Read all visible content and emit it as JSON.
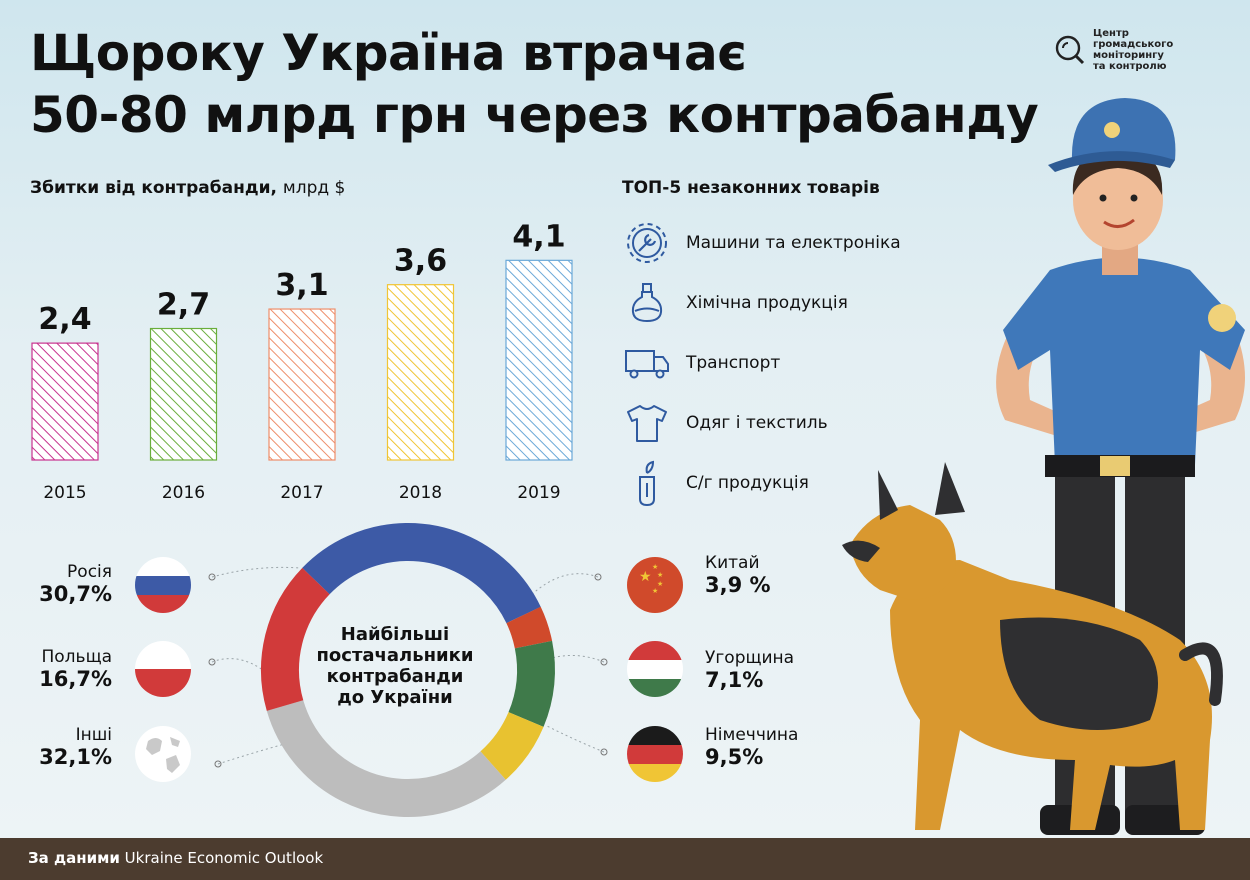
{
  "title": {
    "line1": "Щороку Україна втрачає",
    "line2": "50-80 млрд грн через контрабанду"
  },
  "logo": {
    "line1": "Центр",
    "line2": "громадського моніторингу",
    "line3": "та контролю"
  },
  "losses": {
    "title": "Збитки від контрабанди,",
    "unit": "млрд $"
  },
  "top_goods": {
    "title": "ТОП-5 незаконних товарів",
    "items": [
      {
        "label": "Машини та електроніка",
        "icon": "gear-wrench-icon"
      },
      {
        "label": "Хімічна продукція",
        "icon": "flask-icon"
      },
      {
        "label": "Транспорт",
        "icon": "truck-icon"
      },
      {
        "label": "Одяг і текстиль",
        "icon": "tshirt-icon"
      },
      {
        "label": "С/г продукція",
        "icon": "sprout-tube-icon"
      }
    ]
  },
  "suppliers": {
    "center_line1": "Найбільші",
    "center_line2": "постачальники",
    "center_line3": "контрабанди",
    "center_line4": "до України",
    "countries": [
      {
        "name": "Росія",
        "pct": "30,7%"
      },
      {
        "name": "Польща",
        "pct": "16,7%"
      },
      {
        "name": "Інші",
        "pct": "32,1%"
      },
      {
        "name": "Китай",
        "pct": "3,9 %"
      },
      {
        "name": "Угорщина",
        "pct": "7,1%"
      },
      {
        "name": "Німеччина",
        "pct": "9,5%"
      }
    ]
  },
  "footer": {
    "bold": "За даними",
    "source": "Ukraine Economic Outlook"
  },
  "chart_data": [
    {
      "type": "bar",
      "title": "Збитки від контрабанди, млрд $",
      "categories": [
        "2015",
        "2016",
        "2017",
        "2018",
        "2019"
      ],
      "values": [
        2.4,
        2.7,
        3.1,
        3.6,
        4.1
      ],
      "value_labels": [
        "2,4",
        "2,7",
        "3,1",
        "3,6",
        "4,1"
      ],
      "colors": [
        "#c8338f",
        "#6aae3c",
        "#ee8e6a",
        "#f0c535",
        "#6aa8d8"
      ],
      "ylim": [
        0,
        4.5
      ],
      "grid": false
    },
    {
      "type": "pie",
      "title": "Найбільші постачальники контрабанди до України",
      "categories": [
        "Росія",
        "Китай",
        "Німеччина",
        "Угорщина",
        "Інші",
        "Польща"
      ],
      "values": [
        30.7,
        3.9,
        9.5,
        7.1,
        32.1,
        16.7
      ],
      "colors": [
        "#3d5aa6",
        "#d04a2b",
        "#3f7a4a",
        "#e8c230",
        "#bdbdbd",
        "#d13a3a"
      ]
    }
  ]
}
